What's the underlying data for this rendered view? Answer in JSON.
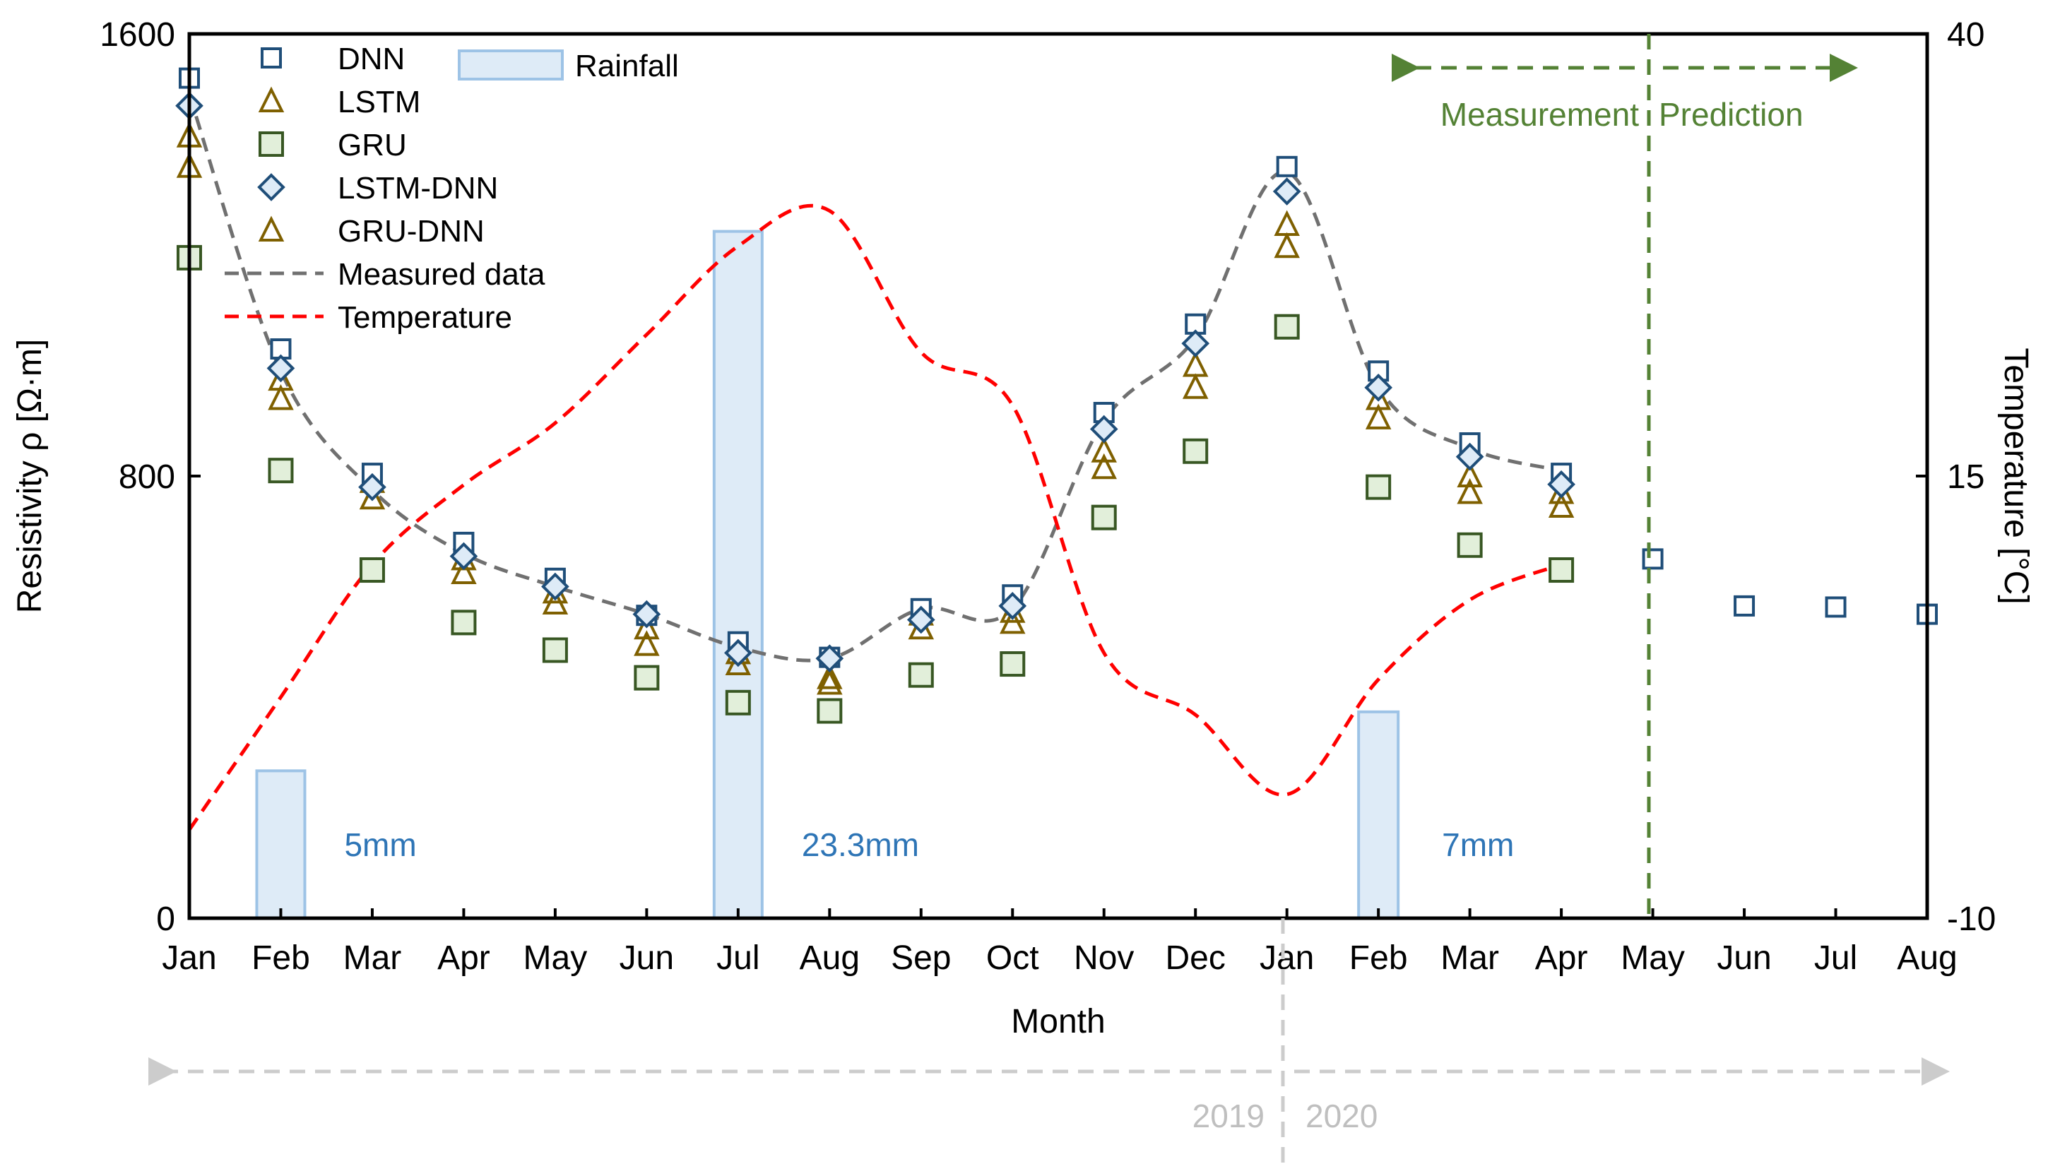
{
  "chart_data": {
    "type": "combo",
    "months": [
      "Jan",
      "Feb",
      "Mar",
      "Apr",
      "May",
      "Jun",
      "Jul",
      "Aug",
      "Sep",
      "Oct",
      "Nov",
      "Dec",
      "Jan",
      "Feb",
      "Mar",
      "Apr",
      "May",
      "Jun",
      "Jul",
      "Aug"
    ],
    "xlabel": "Month",
    "ylabel": "Resistivity ρ [Ω·m]",
    "y2label": "Temperature [°C]",
    "ylim": [
      0,
      1600
    ],
    "y2lim": [
      -10,
      40
    ],
    "yticks": [
      "0",
      "800",
      "1600"
    ],
    "y2ticks": [
      "-10",
      "15",
      "40"
    ],
    "series": [
      {
        "name": "DNN",
        "marker": "square-open",
        "color": "#1f4e79",
        "values": [
          1520,
          1030,
          805,
          680,
          615,
          548,
          500,
          472,
          560,
          585,
          915,
          1075,
          1360,
          990,
          860,
          805,
          650,
          565,
          563,
          550
        ]
      },
      {
        "name": "LSTM",
        "marker": "triangle-open",
        "color": "#7f6000",
        "values": [
          1415,
          975,
          790,
          650,
          590,
          525,
          480,
          435,
          550,
          555,
          845,
          1000,
          1255,
          940,
          800,
          770,
          null,
          null,
          null,
          null
        ]
      },
      {
        "name": "GRU",
        "marker": "square-filled",
        "color": "#385723",
        "fill": "#e2efda",
        "values": [
          1195,
          810,
          630,
          535,
          485,
          435,
          390,
          375,
          440,
          460,
          725,
          845,
          1070,
          780,
          675,
          630,
          null,
          null,
          null,
          null
        ]
      },
      {
        "name": "LSTM-DNN",
        "marker": "diamond",
        "color": "#1f4e79",
        "fill": "#deebf7",
        "values": [
          1470,
          995,
          780,
          655,
          600,
          550,
          480,
          470,
          540,
          565,
          885,
          1040,
          1315,
          960,
          835,
          785,
          null,
          null,
          null,
          null
        ]
      },
      {
        "name": "GRU-DNN",
        "marker": "triangle-open",
        "color": "#7f6000",
        "values": [
          1360,
          940,
          760,
          625,
          570,
          495,
          460,
          425,
          525,
          535,
          815,
          960,
          1215,
          905,
          770,
          745,
          null,
          null,
          null,
          null
        ]
      },
      {
        "name": "Measured data",
        "style": "dashed-line",
        "color": "#707070",
        "values": [
          1490,
          990,
          775,
          660,
          600,
          550,
          490,
          470,
          560,
          560,
          900,
          1050,
          1350,
          960,
          850,
          810
        ]
      },
      {
        "name": "Temperature",
        "style": "dashed-line",
        "axis": "right",
        "color": "#ff0000",
        "points": [
          [
            0,
            -5
          ],
          [
            1,
            2.5
          ],
          [
            2,
            10
          ],
          [
            3,
            14.5
          ],
          [
            4,
            18
          ],
          [
            5,
            23
          ],
          [
            6,
            28
          ],
          [
            7,
            30
          ],
          [
            8,
            22
          ],
          [
            9,
            19
          ],
          [
            10,
            5
          ],
          [
            11,
            1.5
          ],
          [
            12,
            -3
          ],
          [
            13,
            3.5
          ],
          [
            14,
            8
          ],
          [
            15,
            10
          ]
        ]
      },
      {
        "name": "Rainfall",
        "style": "bar",
        "color": "#9dc3e6",
        "fill": "#deebf7",
        "bars": [
          {
            "month_index": 1,
            "value": 5,
            "label": "5mm"
          },
          {
            "month_index": 6,
            "value": 23.3,
            "label": "23.3mm"
          },
          {
            "month_index": 13,
            "value": 7,
            "label": "7mm"
          }
        ]
      }
    ],
    "annotations": {
      "measurement": "Measurement",
      "prediction": "Prediction",
      "year1": "2019",
      "year2": "2020"
    },
    "legend": [
      "DNN",
      "LSTM",
      "GRU",
      "LSTM-DNN",
      "GRU-DNN",
      "Measured data",
      "Temperature",
      "Rainfall"
    ]
  }
}
